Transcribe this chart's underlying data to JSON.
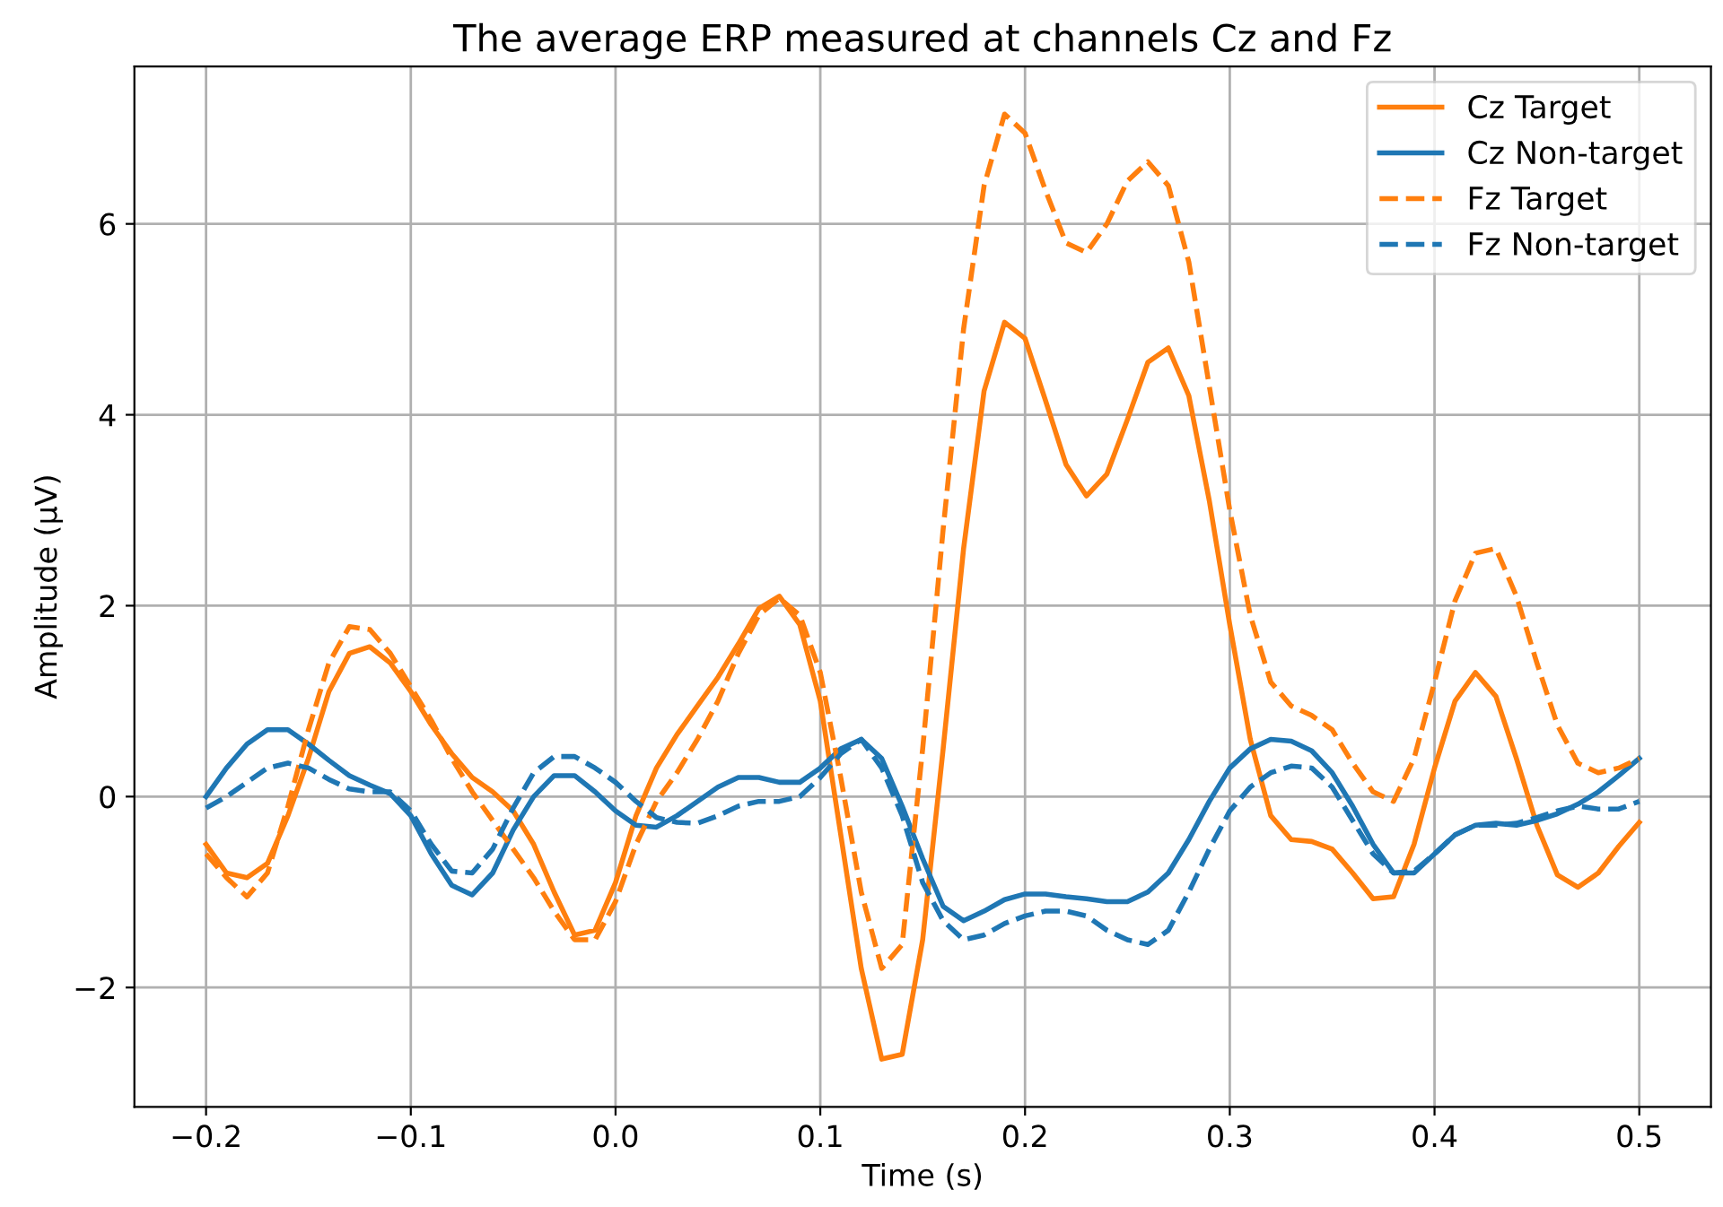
{
  "chart_data": {
    "type": "line",
    "title": "The average ERP measured at channels Cz and Fz",
    "xlabel": "Time (s)",
    "ylabel": "Amplitude (µV)",
    "x": [
      -0.2,
      -0.19,
      -0.18,
      -0.17,
      -0.16,
      -0.15,
      -0.14,
      -0.13,
      -0.12,
      -0.11,
      -0.1,
      -0.09,
      -0.08,
      -0.07,
      -0.06,
      -0.05,
      -0.04,
      -0.03,
      -0.02,
      -0.01,
      0.0,
      0.01,
      0.02,
      0.03,
      0.04,
      0.05,
      0.06,
      0.07,
      0.08,
      0.09,
      0.1,
      0.11,
      0.12,
      0.13,
      0.14,
      0.15,
      0.16,
      0.17,
      0.18,
      0.19,
      0.2,
      0.21,
      0.22,
      0.23,
      0.24,
      0.25,
      0.26,
      0.27,
      0.28,
      0.29,
      0.3,
      0.31,
      0.32,
      0.33,
      0.34,
      0.35,
      0.36,
      0.37,
      0.38,
      0.39,
      0.4,
      0.41,
      0.42,
      0.43,
      0.44,
      0.45,
      0.46,
      0.47,
      0.48,
      0.49,
      0.5
    ],
    "series": [
      {
        "name": "Cz Target",
        "color": "#ff7f0e",
        "line_style": "solid",
        "values": [
          -0.5,
          -0.8,
          -0.85,
          -0.7,
          -0.2,
          0.4,
          1.1,
          1.5,
          1.57,
          1.4,
          1.1,
          0.75,
          0.45,
          0.2,
          0.05,
          -0.15,
          -0.5,
          -1.0,
          -1.45,
          -1.4,
          -0.9,
          -0.2,
          0.3,
          0.65,
          0.95,
          1.25,
          1.6,
          1.97,
          2.1,
          1.8,
          1.0,
          -0.4,
          -1.8,
          -2.75,
          -2.7,
          -1.5,
          0.5,
          2.6,
          4.25,
          4.97,
          4.8,
          4.15,
          3.48,
          3.15,
          3.38,
          3.95,
          4.55,
          4.7,
          4.2,
          3.1,
          1.8,
          0.6,
          -0.2,
          -0.45,
          -0.47,
          -0.55,
          -0.8,
          -1.07,
          -1.05,
          -0.5,
          0.3,
          1.0,
          1.3,
          1.05,
          0.4,
          -0.3,
          -0.82,
          -0.95,
          -0.8,
          -0.52,
          -0.27
        ]
      },
      {
        "name": "Cz Non-target",
        "color": "#1f77b4",
        "line_style": "solid",
        "values": [
          0.0,
          0.3,
          0.55,
          0.7,
          0.7,
          0.55,
          0.38,
          0.22,
          0.12,
          0.03,
          -0.2,
          -0.6,
          -0.93,
          -1.03,
          -0.8,
          -0.35,
          0.0,
          0.22,
          0.22,
          0.05,
          -0.15,
          -0.3,
          -0.32,
          -0.2,
          -0.05,
          0.1,
          0.2,
          0.2,
          0.15,
          0.15,
          0.3,
          0.5,
          0.6,
          0.4,
          -0.1,
          -0.65,
          -1.15,
          -1.3,
          -1.2,
          -1.08,
          -1.02,
          -1.02,
          -1.05,
          -1.07,
          -1.1,
          -1.1,
          -1.0,
          -0.8,
          -0.45,
          -0.05,
          0.3,
          0.5,
          0.6,
          0.58,
          0.48,
          0.25,
          -0.1,
          -0.5,
          -0.8,
          -0.8,
          -0.6,
          -0.4,
          -0.3,
          -0.28,
          -0.3,
          -0.25,
          -0.18,
          -0.08,
          0.05,
          0.22,
          0.4
        ]
      },
      {
        "name": "Fz Target",
        "color": "#ff7f0e",
        "line_style": "dashed",
        "values": [
          -0.6,
          -0.85,
          -1.05,
          -0.8,
          -0.1,
          0.7,
          1.4,
          1.78,
          1.75,
          1.5,
          1.15,
          0.8,
          0.4,
          0.05,
          -0.25,
          -0.55,
          -0.85,
          -1.2,
          -1.5,
          -1.5,
          -1.1,
          -0.5,
          -0.05,
          0.25,
          0.6,
          1.0,
          1.5,
          1.9,
          2.08,
          1.9,
          1.3,
          0.2,
          -1.0,
          -1.8,
          -1.55,
          0.5,
          2.8,
          4.9,
          6.4,
          7.15,
          6.95,
          6.35,
          5.8,
          5.7,
          6.0,
          6.45,
          6.65,
          6.4,
          5.6,
          4.3,
          3.0,
          1.9,
          1.2,
          0.95,
          0.85,
          0.7,
          0.35,
          0.05,
          -0.05,
          0.4,
          1.2,
          2.05,
          2.55,
          2.6,
          2.1,
          1.4,
          0.75,
          0.35,
          0.25,
          0.3,
          0.4
        ]
      },
      {
        "name": "Fz Non-target",
        "color": "#1f77b4",
        "line_style": "dashed",
        "values": [
          -0.12,
          0.0,
          0.15,
          0.3,
          0.35,
          0.3,
          0.18,
          0.08,
          0.05,
          0.05,
          -0.15,
          -0.5,
          -0.78,
          -0.8,
          -0.55,
          -0.12,
          0.25,
          0.42,
          0.42,
          0.3,
          0.15,
          -0.05,
          -0.22,
          -0.27,
          -0.28,
          -0.2,
          -0.1,
          -0.05,
          -0.05,
          0.0,
          0.2,
          0.45,
          0.6,
          0.3,
          -0.2,
          -0.9,
          -1.3,
          -1.5,
          -1.45,
          -1.33,
          -1.25,
          -1.2,
          -1.2,
          -1.25,
          -1.4,
          -1.5,
          -1.55,
          -1.4,
          -1.0,
          -0.55,
          -0.15,
          0.1,
          0.25,
          0.32,
          0.3,
          0.1,
          -0.25,
          -0.6,
          -0.8,
          -0.78,
          -0.6,
          -0.4,
          -0.3,
          -0.3,
          -0.28,
          -0.22,
          -0.15,
          -0.1,
          -0.13,
          -0.13,
          -0.05
        ]
      }
    ],
    "xlim": [
      -0.235,
      0.535
    ],
    "ylim": [
      -3.25,
      7.65
    ],
    "xticks": [
      {
        "value": -0.2,
        "label": "−0.2"
      },
      {
        "value": -0.1,
        "label": "−0.1"
      },
      {
        "value": 0.0,
        "label": "0.0"
      },
      {
        "value": 0.1,
        "label": "0.1"
      },
      {
        "value": 0.2,
        "label": "0.2"
      },
      {
        "value": 0.3,
        "label": "0.3"
      },
      {
        "value": 0.4,
        "label": "0.4"
      },
      {
        "value": 0.5,
        "label": "0.5"
      }
    ],
    "yticks": [
      {
        "value": -2,
        "label": "−2"
      },
      0,
      2,
      4,
      6
    ],
    "grid": true,
    "legend": "top right"
  }
}
